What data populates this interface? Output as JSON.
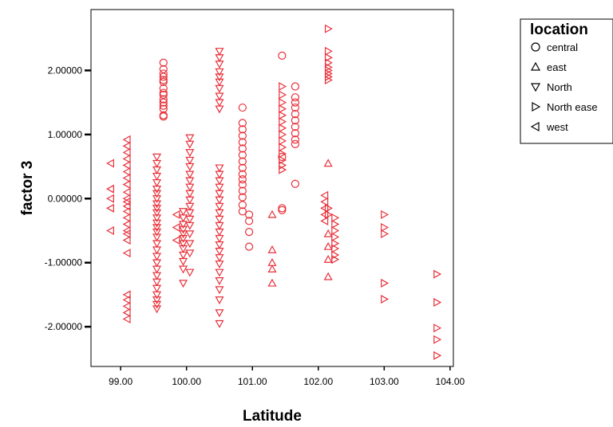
{
  "chart_data": {
    "type": "scatter",
    "title": "",
    "xlabel": "Latitude",
    "ylabel": "factor 3",
    "xlim": [
      98.55,
      104.05
    ],
    "ylim": [
      -2.62,
      2.95
    ],
    "x_ticks": [
      "99.00",
      "100.00",
      "101.00",
      "102.00",
      "103.00",
      "104.00"
    ],
    "y_ticks": [
      "2.00000",
      "1.00000",
      "0.00000",
      "-1.00000",
      "-2.00000"
    ],
    "grid": false,
    "legend": {
      "title": "location",
      "placement": "right"
    },
    "marker_color": "#e8303a",
    "series": [
      {
        "name": "central",
        "marker": "circle",
        "x": [
          99.65,
          99.65,
          99.65,
          99.65,
          99.65,
          99.65,
          99.65,
          99.65,
          99.65,
          99.65,
          99.65,
          99.65,
          99.65,
          99.65,
          99.65,
          100.85,
          100.85,
          100.85,
          100.85,
          100.85,
          100.85,
          100.85,
          100.85,
          100.85,
          100.85,
          100.85,
          100.85,
          100.85,
          100.85,
          100.85,
          100.85,
          100.95,
          100.95,
          100.95,
          100.95,
          101.45,
          101.45,
          101.45,
          101.45,
          101.65,
          101.65,
          101.65,
          101.65,
          101.65,
          101.65,
          101.65,
          101.65,
          101.65,
          101.65,
          101.65
        ],
        "y": [
          2.12,
          2.02,
          1.9,
          1.82,
          1.72,
          1.62,
          1.55,
          1.5,
          1.4,
          1.28,
          1.95,
          1.85,
          1.65,
          1.45,
          1.3,
          1.42,
          1.18,
          1.08,
          0.98,
          0.88,
          0.78,
          0.68,
          0.58,
          0.48,
          0.38,
          0.3,
          0.22,
          0.12,
          0.02,
          -0.1,
          -0.2,
          -0.25,
          -0.35,
          -0.52,
          -0.75,
          2.23,
          0.65,
          -0.15,
          -0.18,
          1.75,
          1.58,
          1.5,
          1.42,
          1.32,
          1.22,
          1.12,
          1.02,
          0.92,
          0.85,
          0.23
        ]
      },
      {
        "name": "east",
        "marker": "triangle-up",
        "x": [
          101.3,
          101.3,
          101.3,
          101.3,
          101.3,
          102.15,
          102.15,
          102.15,
          102.15,
          102.15
        ],
        "y": [
          -0.25,
          -0.8,
          -1.0,
          -1.1,
          -1.32,
          0.55,
          -0.55,
          -0.75,
          -0.95,
          -1.22
        ]
      },
      {
        "name": "North",
        "marker": "triangle-down",
        "x": [
          99.55,
          99.55,
          99.55,
          99.55,
          99.55,
          99.55,
          99.55,
          99.55,
          99.55,
          99.55,
          99.55,
          99.55,
          99.55,
          99.55,
          99.55,
          99.55,
          99.55,
          99.55,
          99.55,
          99.55,
          99.55,
          99.55,
          99.55,
          99.55,
          99.55,
          99.55,
          99.55,
          99.55,
          99.95,
          99.95,
          99.95,
          99.95,
          99.95,
          99.95,
          99.95,
          99.95,
          99.95,
          99.95,
          99.95,
          99.95,
          100.05,
          100.05,
          100.05,
          100.05,
          100.05,
          100.05,
          100.05,
          100.05,
          100.05,
          100.05,
          100.05,
          100.05,
          100.05,
          100.05,
          100.05,
          100.05,
          100.05,
          100.05,
          100.5,
          100.5,
          100.5,
          100.5,
          100.5,
          100.5,
          100.5,
          100.5,
          100.5,
          100.5,
          100.5,
          100.5,
          100.5,
          100.5,
          100.5,
          100.5,
          100.5,
          100.5,
          100.5,
          100.5,
          100.5,
          100.5,
          100.5,
          100.5,
          100.5,
          100.5,
          100.5,
          100.5,
          100.5,
          100.5,
          100.5,
          100.5
        ],
        "y": [
          0.65,
          0.55,
          0.45,
          0.35,
          0.25,
          0.15,
          0.08,
          0.0,
          -0.08,
          -0.15,
          -0.22,
          -0.3,
          -0.38,
          -0.45,
          -0.52,
          -0.6,
          -0.7,
          -0.8,
          -0.9,
          -1.0,
          -1.1,
          -1.2,
          -1.3,
          -1.4,
          -1.5,
          -1.58,
          -1.65,
          -1.72,
          -0.2,
          -0.3,
          -0.4,
          -0.48,
          -0.55,
          -0.62,
          -0.7,
          -0.78,
          -0.88,
          -0.98,
          -1.1,
          -1.32,
          0.95,
          0.85,
          0.72,
          0.6,
          0.5,
          0.38,
          0.28,
          0.18,
          0.08,
          -0.02,
          -0.12,
          -0.22,
          -0.32,
          -0.42,
          -0.55,
          -0.7,
          -0.85,
          -1.15,
          2.3,
          2.2,
          2.1,
          1.98,
          1.9,
          1.82,
          1.72,
          1.6,
          1.5,
          1.4,
          0.48,
          0.38,
          0.28,
          0.18,
          0.08,
          -0.02,
          -0.12,
          -0.22,
          -0.32,
          -0.42,
          -0.52,
          -0.62,
          -0.72,
          -0.82,
          -0.92,
          -1.02,
          -1.15,
          -1.28,
          -1.42,
          -1.58,
          -1.78,
          -1.95
        ]
      },
      {
        "name": "North ease",
        "marker": "triangle-right",
        "x": [
          101.45,
          101.45,
          101.45,
          101.45,
          101.45,
          101.45,
          101.45,
          101.45,
          101.45,
          101.45,
          101.45,
          101.45,
          101.45,
          101.45,
          102.15,
          102.15,
          102.15,
          102.15,
          102.15,
          102.15,
          102.15,
          102.15,
          102.15,
          102.15,
          102.15,
          102.25,
          102.25,
          102.25,
          102.25,
          102.25,
          102.25,
          102.25,
          102.25,
          103.0,
          103.0,
          103.0,
          103.0,
          103.0,
          103.8,
          103.8,
          103.8,
          103.8,
          103.8
        ],
        "y": [
          1.75,
          1.62,
          1.5,
          1.4,
          1.3,
          1.2,
          1.1,
          1.0,
          0.9,
          0.8,
          0.7,
          0.6,
          0.52,
          0.45,
          2.65,
          2.3,
          2.2,
          2.12,
          2.05,
          2.0,
          1.95,
          1.9,
          1.85,
          -0.15,
          -0.25,
          -0.3,
          -0.4,
          -0.5,
          -0.6,
          -0.7,
          -0.78,
          -0.88,
          -0.95,
          -0.25,
          -0.45,
          -0.55,
          -1.32,
          -1.57,
          -1.18,
          -1.62,
          -2.02,
          -2.2,
          -2.45
        ]
      },
      {
        "name": "west",
        "marker": "triangle-left",
        "x": [
          98.85,
          98.85,
          98.85,
          98.85,
          98.85,
          99.1,
          99.1,
          99.1,
          99.1,
          99.1,
          99.1,
          99.1,
          99.1,
          99.1,
          99.1,
          99.1,
          99.1,
          99.1,
          99.1,
          99.1,
          99.1,
          99.1,
          99.1,
          99.1,
          99.1,
          99.1,
          99.1,
          99.1,
          99.1,
          99.85,
          99.85,
          99.85,
          102.1,
          102.1,
          102.1,
          102.1,
          102.1
        ],
        "y": [
          0.55,
          0.15,
          0.0,
          -0.15,
          -0.5,
          0.92,
          0.82,
          0.72,
          0.62,
          0.52,
          0.42,
          0.32,
          0.22,
          0.1,
          0.0,
          -0.05,
          -0.12,
          -0.2,
          -0.3,
          -0.4,
          -0.5,
          -0.55,
          -0.65,
          -0.85,
          -1.5,
          -1.58,
          -1.68,
          -1.78,
          -1.88,
          -0.25,
          -0.45,
          -0.65,
          0.05,
          -0.05,
          -0.15,
          -0.25,
          -0.35
        ]
      }
    ]
  }
}
